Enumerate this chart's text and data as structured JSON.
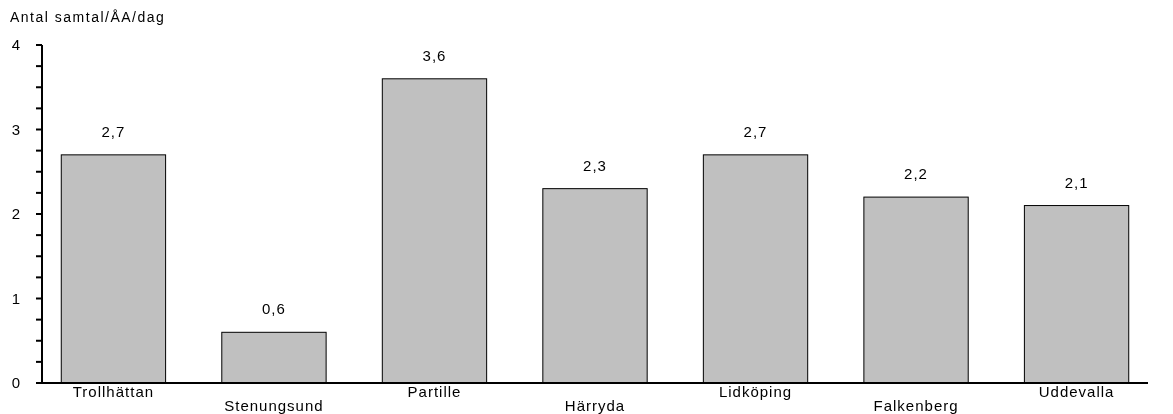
{
  "chart_data": {
    "type": "bar",
    "ylabel": "Antal samtal/ÅA/dag",
    "categories": [
      "Trollhättan",
      "Stenungsund",
      "Partille",
      "Härryda",
      "Lidköping",
      "Falkenberg",
      "Uddevalla"
    ],
    "values": [
      2.7,
      0.6,
      3.6,
      2.3,
      2.7,
      2.2,
      2.1
    ],
    "value_labels": [
      "2,7",
      "0,6",
      "3,6",
      "2,3",
      "2,7",
      "2,2",
      "2,1"
    ],
    "color": "#c0c0c0",
    "ylim": [
      0,
      4
    ],
    "yticks": [
      0,
      {
        "value": 0.25,
        "label": null
      },
      {
        "value": 0.5,
        "label": null
      },
      {
        "value": 0.75,
        "label": null
      },
      1,
      {
        "value": 1.25,
        "label": null
      },
      {
        "value": 1.5,
        "label": null
      },
      {
        "value": 1.75,
        "label": null
      },
      2,
      {
        "value": 2.25,
        "label": null
      },
      {
        "value": 2.5,
        "label": null
      },
      {
        "value": 2.75,
        "label": null
      },
      3,
      {
        "value": 3.25,
        "label": null
      },
      {
        "value": 3.5,
        "label": null
      },
      {
        "value": 3.75,
        "label": null
      },
      4
    ],
    "grid": false
  }
}
